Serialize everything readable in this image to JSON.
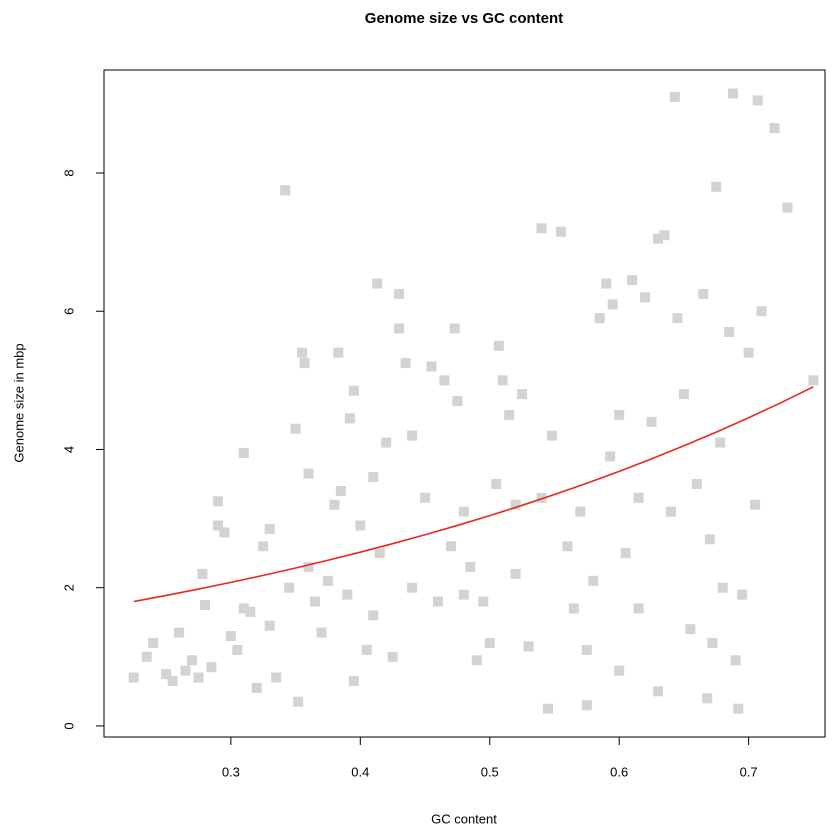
{
  "chart_data": {
    "type": "scatter",
    "title": "Genome size vs GC content",
    "x_label": "GC content",
    "y_label": "Genome size in mbp",
    "xlim": [
      0.202,
      0.759
    ],
    "ylim": [
      -0.16,
      9.49
    ],
    "xticks": [
      0.3,
      0.4,
      0.5,
      0.6,
      0.7
    ],
    "yticks": [
      0,
      2,
      4,
      6,
      8
    ],
    "series": [
      {
        "color": "#d3d3d3",
        "x": [
          0.225,
          0.24,
          0.235,
          0.25,
          0.255,
          0.26,
          0.265,
          0.27,
          0.275,
          0.278,
          0.28,
          0.285,
          0.29,
          0.29,
          0.295,
          0.3,
          0.305,
          0.31,
          0.31,
          0.315,
          0.32,
          0.325,
          0.33,
          0.33,
          0.335,
          0.342,
          0.345,
          0.35,
          0.352,
          0.355,
          0.357,
          0.36,
          0.36,
          0.365,
          0.37,
          0.375,
          0.38,
          0.383,
          0.385,
          0.39,
          0.392,
          0.395,
          0.395,
          0.4,
          0.405,
          0.41,
          0.41,
          0.413,
          0.415,
          0.42,
          0.425,
          0.43,
          0.43,
          0.435,
          0.44,
          0.44,
          0.45,
          0.455,
          0.46,
          0.465,
          0.47,
          0.473,
          0.475,
          0.48,
          0.48,
          0.485,
          0.49,
          0.495,
          0.5,
          0.505,
          0.507,
          0.51,
          0.515,
          0.52,
          0.52,
          0.525,
          0.53,
          0.54,
          0.54,
          0.545,
          0.548,
          0.555,
          0.56,
          0.565,
          0.57,
          0.575,
          0.575,
          0.58,
          0.585,
          0.59,
          0.593,
          0.595,
          0.6,
          0.6,
          0.605,
          0.61,
          0.615,
          0.615,
          0.62,
          0.625,
          0.63,
          0.63,
          0.635,
          0.64,
          0.643,
          0.645,
          0.65,
          0.655,
          0.66,
          0.665,
          0.668,
          0.67,
          0.672,
          0.675,
          0.678,
          0.68,
          0.685,
          0.688,
          0.69,
          0.692,
          0.695,
          0.7,
          0.705,
          0.707,
          0.71,
          0.72,
          0.73,
          0.75
        ],
        "values": [
          0.7,
          1.2,
          1.0,
          0.75,
          0.65,
          1.35,
          0.8,
          0.95,
          0.7,
          2.2,
          1.75,
          0.85,
          3.25,
          2.9,
          2.8,
          1.3,
          1.1,
          3.95,
          1.7,
          1.65,
          0.55,
          2.6,
          2.85,
          1.45,
          0.7,
          7.75,
          2.0,
          4.3,
          0.35,
          5.4,
          5.25,
          3.65,
          2.3,
          1.8,
          1.35,
          2.1,
          3.2,
          5.4,
          3.4,
          1.9,
          4.45,
          4.85,
          0.65,
          2.9,
          1.1,
          3.6,
          1.6,
          6.4,
          2.5,
          4.1,
          1.0,
          6.25,
          5.75,
          5.25,
          4.2,
          2.0,
          3.3,
          5.2,
          1.8,
          5.0,
          2.6,
          5.75,
          4.7,
          3.1,
          1.9,
          2.3,
          0.95,
          1.8,
          1.2,
          3.5,
          5.5,
          5.0,
          4.5,
          2.2,
          3.2,
          4.8,
          1.15,
          3.3,
          7.2,
          0.25,
          4.2,
          7.15,
          2.6,
          1.7,
          3.1,
          0.3,
          1.1,
          2.1,
          5.9,
          6.4,
          3.9,
          6.1,
          0.8,
          4.5,
          2.5,
          6.45,
          3.3,
          1.7,
          6.2,
          4.4,
          0.5,
          7.05,
          7.1,
          3.1,
          9.1,
          5.9,
          4.8,
          1.4,
          3.5,
          6.25,
          0.4,
          2.7,
          1.2,
          7.8,
          4.1,
          2.0,
          5.7,
          9.15,
          0.95,
          0.25,
          1.9,
          5.4,
          3.2,
          9.05,
          6.0,
          8.65,
          7.5,
          5.0
        ]
      },
      {
        "type": "line",
        "color": "#e8271f",
        "x": [
          0.225,
          0.25,
          0.275,
          0.3,
          0.325,
          0.35,
          0.375,
          0.4,
          0.425,
          0.45,
          0.475,
          0.5,
          0.525,
          0.55,
          0.575,
          0.6,
          0.625,
          0.65,
          0.675,
          0.7,
          0.725,
          0.75
        ],
        "values": [
          1.8,
          1.888,
          1.98,
          2.077,
          2.178,
          2.285,
          2.397,
          2.514,
          2.637,
          2.766,
          2.901,
          3.043,
          3.192,
          3.348,
          3.512,
          3.683,
          3.864,
          4.053,
          4.251,
          4.459,
          4.677,
          4.906
        ]
      }
    ]
  }
}
